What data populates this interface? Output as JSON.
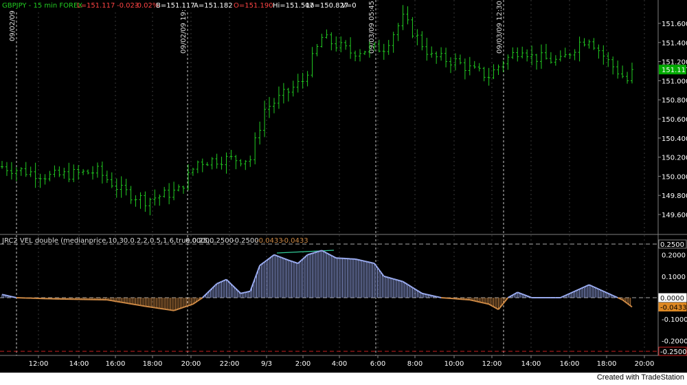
{
  "header": {
    "symbol": "GBPJPY - 15 min  FOREX",
    "last": "L=151.117",
    "net_change": "-0.023",
    "pct_change": "-0.02%",
    "bid": "B=151.117",
    "ask": "A=151.182",
    "open": "O=151.190",
    "high": "Hi=151.507",
    "low": "Lo=150.827",
    "volume": "V=0"
  },
  "indicator_header": {
    "name": "JRC2 VEL double (medianprice,10,30,0.2,2,0.5,1.6,true,0.25,...",
    "values": [
      "0.0000",
      "0.2500",
      "-0.2500",
      "-0.0433",
      "-0.0433"
    ]
  },
  "session_markers": [
    "09/02/09 10:45",
    "09/02/09 19:45",
    "09/03/09 05:45",
    "09/03/09 12:30"
  ],
  "colors": {
    "background": "#000000",
    "price_bars": "#22cc22",
    "indicator_up": "#99aaee",
    "indicator_down": "#cc8844",
    "last_price_tag": "#00aa00",
    "negative_value": "#ff4444",
    "trend_line": "#33cc99"
  },
  "price_axis": {
    "labels": [
      "151.600",
      "151.400",
      "151.200",
      "151.000",
      "150.800",
      "150.600",
      "150.400",
      "150.200",
      "150.000",
      "149.800",
      "149.600"
    ],
    "last_price_tag": "151.117"
  },
  "indicator_axis": {
    "labels": [
      "0.2000",
      "0.1000",
      "-0.1000",
      "-0.2000"
    ],
    "tags": [
      {
        "value": 0.25,
        "text": "0.2500"
      },
      {
        "value": 0.0,
        "text": "0.0000"
      },
      {
        "value": -0.0433,
        "text": "-0.0433"
      },
      {
        "value": -0.25,
        "text": "-0.2500"
      }
    ]
  },
  "time_axis": {
    "labels": [
      "12:00",
      "14:00",
      "16:00",
      "18:00",
      "20:00",
      "22:00",
      "9/3",
      "2:00",
      "4:00",
      "6:00",
      "8:00",
      "10:00",
      "12:00",
      "14:00",
      "16:00",
      "18:00",
      "20:00"
    ]
  },
  "footer": {
    "text": "Created with TradeStation"
  },
  "chart_data": [
    {
      "type": "bar",
      "chart_kind": "ohlc",
      "series_name": "GBPJPY - 15 min",
      "ylim": [
        149.5,
        151.75
      ],
      "grid": false,
      "time_ticks": [
        "12:00",
        "14:00",
        "16:00",
        "18:00",
        "20:00",
        "22:00",
        "9/3",
        "2:00",
        "4:00",
        "6:00",
        "8:00",
        "10:00",
        "12:00",
        "14:00",
        "16:00",
        "18:00",
        "20:00"
      ],
      "anchors": [
        [
          0,
          150.1
        ],
        [
          10,
          150.0
        ],
        [
          20,
          150.05
        ],
        [
          25,
          149.85
        ],
        [
          30,
          149.75
        ],
        [
          37,
          149.85
        ],
        [
          41,
          150.15
        ],
        [
          46,
          150.18
        ],
        [
          52,
          150.18
        ],
        [
          55,
          150.7
        ],
        [
          63,
          151.0
        ],
        [
          67,
          151.45
        ],
        [
          73,
          151.3
        ],
        [
          80,
          151.35
        ],
        [
          84,
          151.65
        ],
        [
          90,
          151.25
        ],
        [
          95,
          151.2
        ],
        [
          99,
          151.1
        ],
        [
          102,
          151.05
        ],
        [
          105,
          151.2
        ],
        [
          109,
          151.35
        ],
        [
          111,
          151.25
        ],
        [
          117,
          151.2
        ],
        [
          121,
          151.4
        ],
        [
          123,
          151.45
        ],
        [
          127,
          151.2
        ],
        [
          131,
          151.0
        ],
        [
          132,
          151.12
        ]
      ],
      "bar_count": 133,
      "last": 151.117,
      "high": 151.507,
      "low": 150.827
    },
    {
      "type": "area",
      "series_name": "JRC2 VEL double",
      "ylim": [
        -0.25,
        0.25
      ],
      "reference_lines": [
        0.25,
        0.0,
        -0.25
      ],
      "last_value": -0.0433,
      "anchors": [
        [
          0,
          0.015
        ],
        [
          3,
          0.0
        ],
        [
          10,
          -0.005
        ],
        [
          22,
          -0.01
        ],
        [
          30,
          -0.04
        ],
        [
          36,
          -0.06
        ],
        [
          40,
          -0.03
        ],
        [
          42,
          0.0
        ],
        [
          45,
          0.065
        ],
        [
          47,
          0.085
        ],
        [
          50,
          0.02
        ],
        [
          52,
          0.03
        ],
        [
          54,
          0.15
        ],
        [
          57,
          0.2
        ],
        [
          60,
          0.175
        ],
        [
          62,
          0.16
        ],
        [
          64,
          0.2
        ],
        [
          67,
          0.22
        ],
        [
          70,
          0.185
        ],
        [
          74,
          0.18
        ],
        [
          78,
          0.16
        ],
        [
          80,
          0.1
        ],
        [
          84,
          0.075
        ],
        [
          88,
          0.02
        ],
        [
          92,
          0.0
        ],
        [
          98,
          -0.01
        ],
        [
          102,
          -0.03
        ],
        [
          104,
          -0.055
        ],
        [
          106,
          0.0
        ],
        [
          108,
          0.025
        ],
        [
          111,
          0.0
        ],
        [
          117,
          0.0
        ],
        [
          123,
          0.06
        ],
        [
          127,
          0.02
        ],
        [
          130,
          -0.01
        ],
        [
          132,
          -0.0433
        ]
      ],
      "bar_count": 133
    }
  ]
}
